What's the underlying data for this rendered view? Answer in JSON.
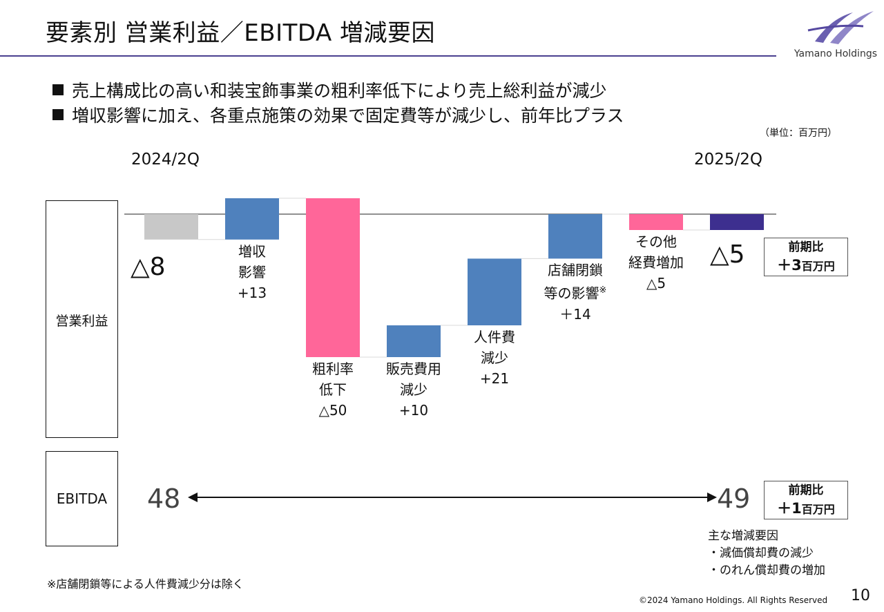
{
  "header": {
    "title": "要素別 営業利益／EBITDA 増減要因",
    "logo_text": "Yamano Holdings"
  },
  "bullets": [
    "売上構成比の高い和装宝飾事業の粗利率低下により売上総利益が減少",
    "増収影響に加え、各重点施策の効果で固定費等が減少し、前年比プラス"
  ],
  "unit": "（単位：百万円）",
  "periods": {
    "start": "2024/2Q",
    "end": "2025/2Q"
  },
  "rows": {
    "operating_profit": "営業利益",
    "ebitda": "EBITDA"
  },
  "chart_data": {
    "type": "waterfall",
    "title": "営業利益 増減要因",
    "unit": "百万円",
    "start": {
      "label": "2024/2Q",
      "value": -8,
      "display": "△8"
    },
    "end": {
      "label": "2025/2Q",
      "value": -5,
      "display": "△5"
    },
    "steps": [
      {
        "label_lines": [
          "増収",
          "影響"
        ],
        "value_text": "+13",
        "value": 13
      },
      {
        "label_lines": [
          "粗利率",
          "低下"
        ],
        "value_text": "△50",
        "value": -50
      },
      {
        "label_lines": [
          "販売費用",
          "減少"
        ],
        "value_text": "+10",
        "value": 10
      },
      {
        "label_lines": [
          "人件費",
          "減少"
        ],
        "value_text": "+21",
        "value": 21
      },
      {
        "label_lines": [
          "店舗閉鎖",
          "等の影響"
        ],
        "note_mark": "※",
        "value_text": "＋14",
        "value": 14
      },
      {
        "label_lines": [
          "その他",
          "経費増加"
        ],
        "value_text": "△5",
        "value": -5
      }
    ],
    "comparison": {
      "label": "前期比",
      "value_text": "＋3",
      "unit": "百万円"
    },
    "colors": {
      "start": "#c8c8c8",
      "increase": "#4f81bd",
      "decrease": "#ff6699",
      "end": "#3d2f8f"
    }
  },
  "ebitda": {
    "start_value": "48",
    "end_value": "49",
    "comparison": {
      "label": "前期比",
      "value_text": "＋1",
      "unit": "百万円"
    },
    "factors_title": "主な増減要因",
    "factors": [
      "・減価償却費の減少",
      "・のれん償却費の増加"
    ]
  },
  "footnote": "※店舗閉鎖等による人件費減少分は除く",
  "footer": {
    "copyright": "©2024 Yamano Holdings. All Rights Reserved",
    "page": "10"
  }
}
